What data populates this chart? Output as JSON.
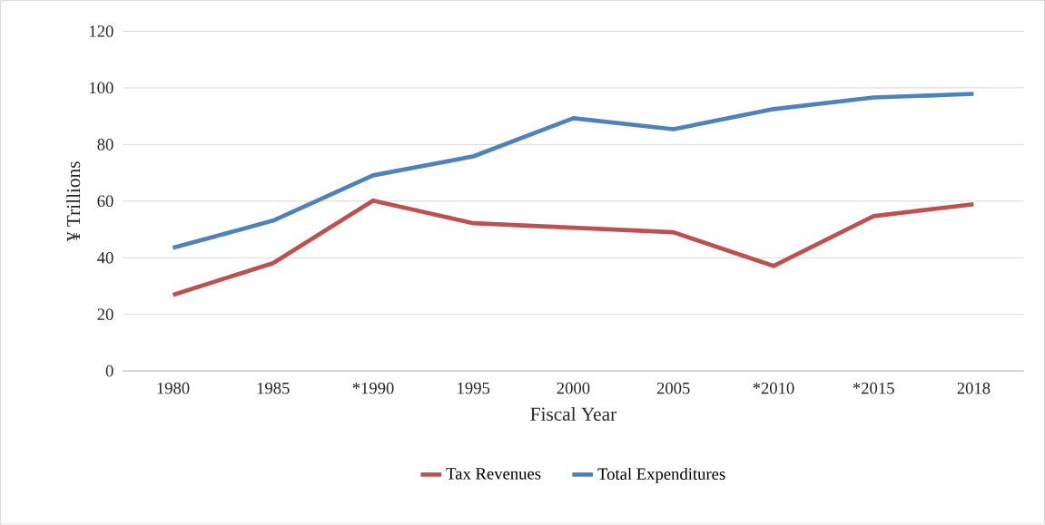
{
  "chart_data": {
    "type": "line",
    "xlabel": "Fiscal Year",
    "ylabel": "¥ Trillions",
    "categories": [
      "1980",
      "1985",
      "*1990",
      "1995",
      "2000",
      "2005",
      "*2010",
      "*2015",
      "2018"
    ],
    "series": [
      {
        "name": "Tax Revenues",
        "color": "#c0504d",
        "values": [
          26.9,
          38.1,
          60.2,
          52.2,
          50.6,
          49.0,
          37.1,
          54.7,
          58.9
        ]
      },
      {
        "name": "Total Expenditures",
        "color": "#4f81bd",
        "values": [
          43.5,
          53.1,
          69.1,
          75.8,
          89.3,
          85.4,
          92.5,
          96.6,
          97.9
        ]
      }
    ],
    "ylim": [
      0,
      120
    ],
    "yticks": [
      0,
      20,
      40,
      60,
      80,
      100,
      120
    ],
    "grid": "y",
    "legend": "bottom",
    "marker": "none",
    "line_style": "solid"
  }
}
